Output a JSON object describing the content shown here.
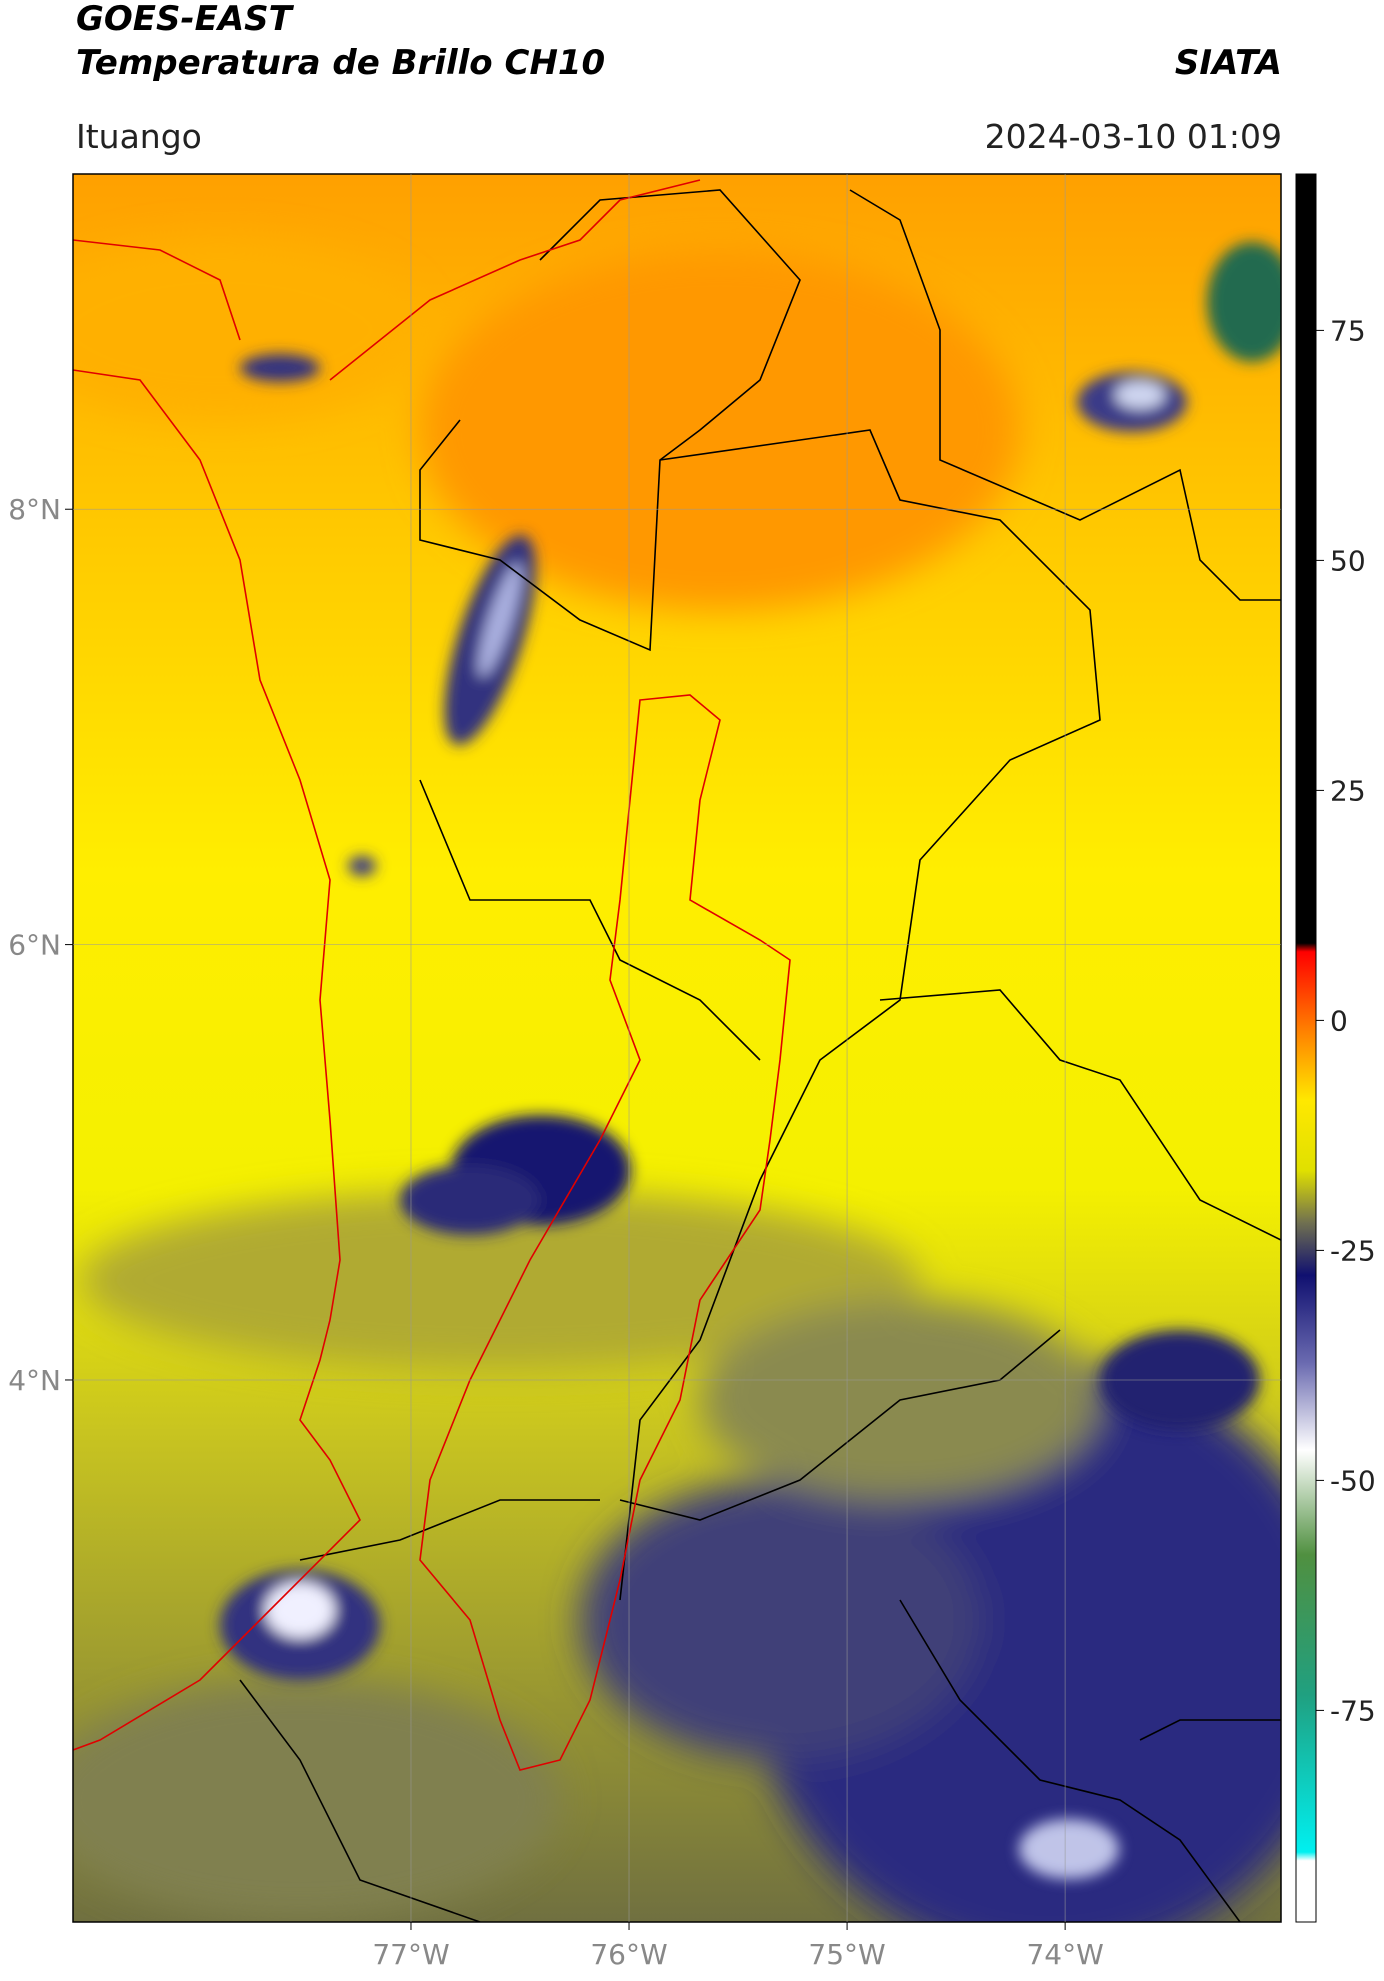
{
  "header": {
    "title": "GOES-EAST",
    "subtitle": "Temperatura de Brillo CH10",
    "source": "SIATA",
    "location": "Ituango",
    "timestamp": "2024-03-10 01:09"
  },
  "map": {
    "xlim": [
      -78.55,
      -73.01
    ],
    "ylim": [
      1.51,
      9.54
    ],
    "xticks": [
      {
        "value": -77,
        "label": "77°W"
      },
      {
        "value": -76,
        "label": "76°W"
      },
      {
        "value": -75,
        "label": "75°W"
      },
      {
        "value": -74,
        "label": "74°W"
      }
    ],
    "yticks": [
      {
        "value": 8,
        "label": "8°N"
      },
      {
        "value": 6,
        "label": "6°N"
      },
      {
        "value": 4,
        "label": "4°N"
      }
    ]
  },
  "colorbar": {
    "ylim": [
      -98,
      92
    ],
    "yticks": [
      75,
      50,
      25,
      0,
      -25,
      -50,
      -75
    ]
  }
}
